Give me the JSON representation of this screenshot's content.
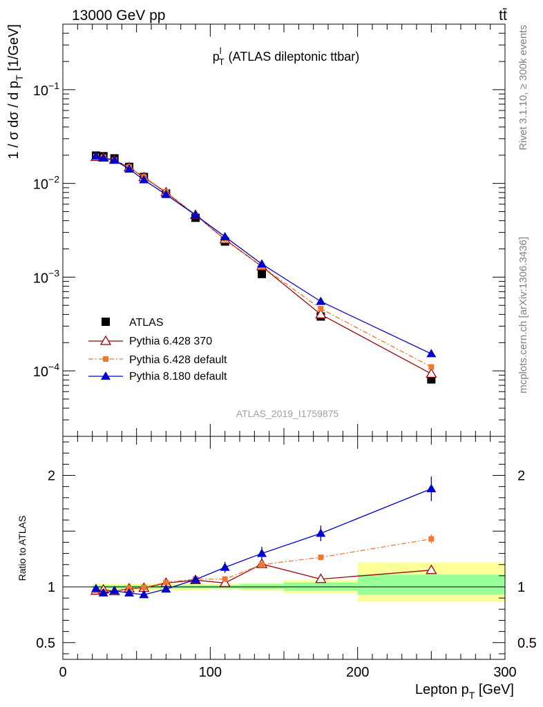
{
  "header": {
    "energy_label": "13000 GeV pp",
    "process_label": "tt̄"
  },
  "side_labels": {
    "rivet": "Rivet 3.1.10, ≥ 300k events",
    "mcplots": "mcplots.cern.ch [arXiv:1306.3436]"
  },
  "chart_data": [
    {
      "type": "scatter",
      "title": "(ATLAS dileptonic ttbar)",
      "title_var": "p",
      "title_sup": "l",
      "title_sub": "T",
      "ylabel": "1 / σ  dσ / d p",
      "ylabel_sub": "T",
      "ylabel_unit": " [1/GeV]",
      "yscale": "log",
      "xlim": [
        0,
        300
      ],
      "ylim": [
        2e-05,
        0.5
      ],
      "ytick_labels": [
        {
          "value": 0.1,
          "base": "10",
          "exp": "−1"
        },
        {
          "value": 0.01,
          "base": "10",
          "exp": "−2"
        },
        {
          "value": 0.001,
          "base": "10",
          "exp": "−3"
        },
        {
          "value": 0.0001,
          "base": "10",
          "exp": "−4"
        }
      ],
      "analysis_id": "ATLAS_2019_I1759875",
      "legend_position": "bottom-left",
      "series": [
        {
          "name": "ATLAS",
          "style": "data",
          "color": "#000000",
          "x": [
            22.5,
            27.5,
            35,
            45,
            55,
            70,
            90,
            110,
            135,
            175,
            250
          ],
          "y": [
            0.0198,
            0.0195,
            0.0185,
            0.015,
            0.0117,
            0.0078,
            0.0043,
            0.0024,
            0.00108,
            0.00038,
            8.1e-05
          ]
        },
        {
          "name": "Pythia 6.428 370",
          "style": "open-triangle",
          "color": "#990000",
          "x": [
            22.5,
            27.5,
            35,
            45,
            55,
            70,
            90,
            110,
            135,
            175,
            250
          ],
          "y": [
            0.0191,
            0.0189,
            0.0178,
            0.0148,
            0.0116,
            0.008,
            0.0046,
            0.00252,
            0.0013,
            0.0004,
            9.3e-05
          ]
        },
        {
          "name": "Pythia 6.428 default",
          "style": "square-dashdot",
          "color": "#ee7733",
          "x": [
            22.5,
            27.5,
            35,
            45,
            55,
            70,
            90,
            110,
            135,
            175,
            250
          ],
          "y": [
            0.0193,
            0.019,
            0.0177,
            0.0149,
            0.0117,
            0.0081,
            0.0046,
            0.00255,
            0.0013,
            0.00046,
            0.00011
          ]
        },
        {
          "name": "Pythia 8.180 default",
          "style": "filled-triangle",
          "color": "#0000cc",
          "x": [
            22.5,
            27.5,
            35,
            45,
            55,
            70,
            90,
            110,
            135,
            175,
            250
          ],
          "y": [
            0.0195,
            0.0186,
            0.0177,
            0.0142,
            0.0109,
            0.0076,
            0.0046,
            0.0027,
            0.00138,
            0.00055,
            0.000152
          ]
        }
      ]
    },
    {
      "type": "scatter",
      "ylabel": "Ratio to ATLAS",
      "xlabel": "Lepton p",
      "xlabel_sub": "T",
      "xlabel_unit": " [GeV]",
      "xlim": [
        0,
        300
      ],
      "ylim": [
        0.35,
        2.35
      ],
      "xtick_labels": [
        0,
        100,
        200,
        300
      ],
      "ytick_labels": [
        {
          "value": 0.5,
          "label": "0.5"
        },
        {
          "value": 1,
          "label": "1"
        },
        {
          "value": 2,
          "label": "2"
        }
      ],
      "reference_line": 1,
      "uncertainty_bands": [
        {
          "x0": 20,
          "x1": 25,
          "inner": [
            0.985,
            1.015
          ],
          "outer": [
            0.97,
            1.03
          ]
        },
        {
          "x0": 25,
          "x1": 30,
          "inner": [
            0.985,
            1.015
          ],
          "outer": [
            0.97,
            1.03
          ]
        },
        {
          "x0": 30,
          "x1": 40,
          "inner": [
            0.985,
            1.015
          ],
          "outer": [
            0.97,
            1.03
          ]
        },
        {
          "x0": 40,
          "x1": 50,
          "inner": [
            0.985,
            1.015
          ],
          "outer": [
            0.97,
            1.03
          ]
        },
        {
          "x0": 50,
          "x1": 60,
          "inner": [
            0.985,
            1.015
          ],
          "outer": [
            0.97,
            1.03
          ]
        },
        {
          "x0": 60,
          "x1": 80,
          "inner": [
            0.985,
            1.015
          ],
          "outer": [
            0.97,
            1.03
          ]
        },
        {
          "x0": 80,
          "x1": 100,
          "inner": [
            0.985,
            1.015
          ],
          "outer": [
            0.97,
            1.03
          ]
        },
        {
          "x0": 100,
          "x1": 120,
          "inner": [
            0.985,
            1.015
          ],
          "outer": [
            0.975,
            1.03
          ]
        },
        {
          "x0": 120,
          "x1": 150,
          "inner": [
            0.98,
            1.025
          ],
          "outer": [
            0.965,
            1.035
          ]
        },
        {
          "x0": 150,
          "x1": 200,
          "inner": [
            0.965,
            1.04
          ],
          "outer": [
            0.945,
            1.06
          ]
        },
        {
          "x0": 200,
          "x1": 300,
          "inner": [
            0.93,
            1.11
          ],
          "outer": [
            0.87,
            1.22
          ]
        }
      ],
      "series": [
        {
          "name": "ATLAS",
          "style": "data",
          "color": "#000000",
          "x": [
            22.5,
            27.5,
            35,
            45,
            55,
            70,
            90,
            110,
            135,
            175,
            250
          ],
          "y": [
            1,
            1,
            1,
            1,
            1,
            1,
            1,
            1,
            1,
            1,
            1
          ]
        },
        {
          "name": "Pythia 6.428 370",
          "style": "open-triangle",
          "color": "#990000",
          "x": [
            22.5,
            27.5,
            35,
            45,
            55,
            70,
            90,
            110,
            135,
            175,
            250
          ],
          "y": [
            0.965,
            0.975,
            0.96,
            0.985,
            0.99,
            1.035,
            1.06,
            1.035,
            1.205,
            1.07,
            1.15
          ],
          "err": [
            0.02,
            0.015,
            0.015,
            0.015,
            0.015,
            0.015,
            0.02,
            0.02,
            0.025,
            0.02,
            0.03
          ]
        },
        {
          "name": "Pythia 6.428 default",
          "style": "square-dashdot",
          "color": "#ee7733",
          "x": [
            22.5,
            27.5,
            35,
            45,
            55,
            70,
            90,
            110,
            135,
            175,
            250
          ],
          "y": [
            0.97,
            0.955,
            0.955,
            0.985,
            0.995,
            1.04,
            1.07,
            1.07,
            1.2,
            1.265,
            1.43
          ],
          "err": [
            0.015,
            0.015,
            0.015,
            0.015,
            0.015,
            0.015,
            0.02,
            0.02,
            0.025,
            0.025,
            0.04
          ]
        },
        {
          "name": "Pythia 8.180 default",
          "style": "filled-triangle",
          "color": "#0000cc",
          "x": [
            22.5,
            27.5,
            35,
            45,
            55,
            70,
            90,
            110,
            135,
            175,
            250
          ],
          "y": [
            0.985,
            0.945,
            0.965,
            0.945,
            0.93,
            0.98,
            1.065,
            1.175,
            1.3,
            1.48,
            1.88
          ],
          "err": [
            0.03,
            0.02,
            0.02,
            0.02,
            0.02,
            0.02,
            0.03,
            0.05,
            0.06,
            0.07,
            0.11
          ]
        }
      ]
    }
  ]
}
